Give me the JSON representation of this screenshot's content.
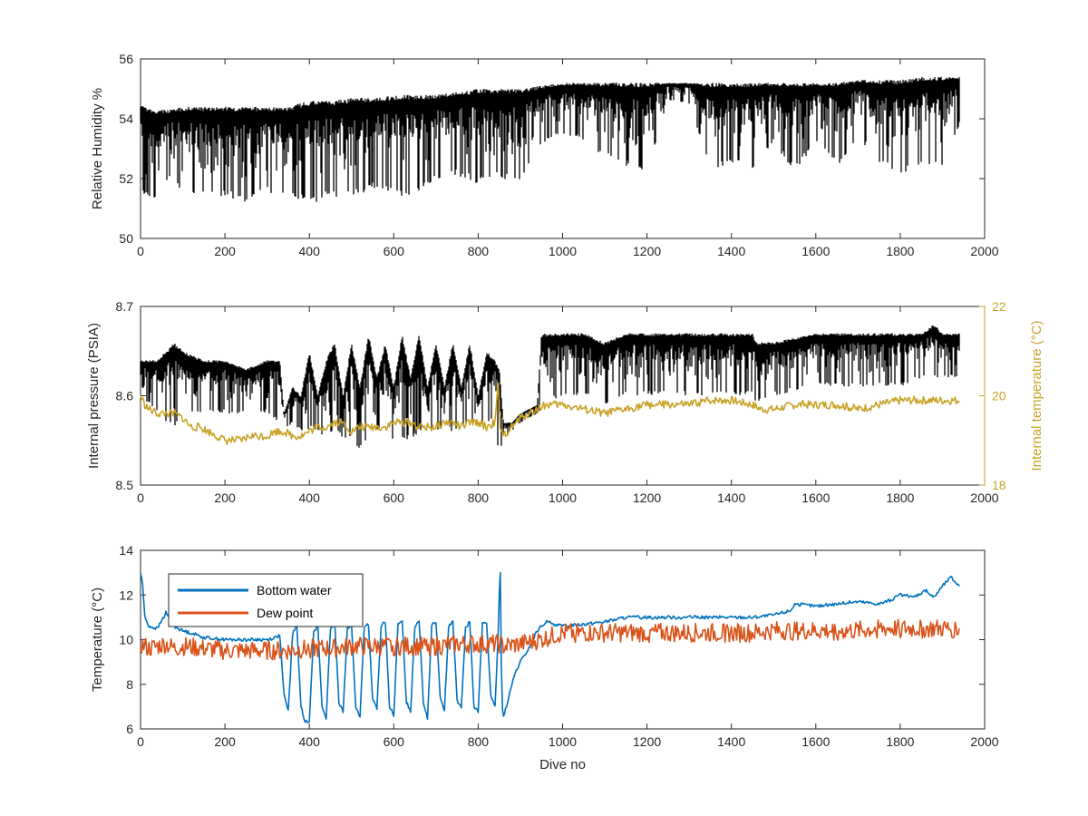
{
  "colors": {
    "rh": "#000000",
    "pressure": "#000000",
    "internal_temp": "#C9A227",
    "bottom_water": "#0072BD",
    "dew_point": "#D95319",
    "axis": "#262626"
  },
  "chart_data": [
    {
      "type": "line",
      "title": "",
      "xlabel": "",
      "ylabel": "Relative Humidity %",
      "xlim": [
        0,
        2000
      ],
      "ylim": [
        50,
        56
      ],
      "xticks": [
        "0",
        "200",
        "400",
        "600",
        "800",
        "1000",
        "1200",
        "1400",
        "1600",
        "1800",
        "2000"
      ],
      "yticks": [
        "50",
        "52",
        "54",
        "56"
      ],
      "grid": false,
      "series": [
        {
          "style": "dense envelope",
          "color": "#000000",
          "x": [
            0,
            25,
            50,
            75,
            100,
            150,
            200,
            250,
            300,
            350,
            400,
            450,
            500,
            550,
            600,
            650,
            700,
            750,
            800,
            850,
            900,
            950,
            1000,
            1050,
            1100,
            1150,
            1200,
            1250,
            1300,
            1350,
            1400,
            1450,
            1500,
            1550,
            1600,
            1650,
            1700,
            1750,
            1800,
            1850,
            1900,
            1940
          ],
          "upper": [
            54.5,
            54.3,
            54.3,
            54.3,
            54.4,
            54.4,
            54.4,
            54.4,
            54.4,
            54.4,
            54.6,
            54.6,
            54.7,
            54.7,
            54.8,
            54.8,
            54.8,
            54.9,
            55.0,
            55.0,
            55.0,
            55.1,
            55.2,
            55.2,
            55.2,
            55.2,
            55.2,
            55.2,
            55.2,
            55.2,
            55.2,
            55.2,
            55.2,
            55.2,
            55.2,
            55.2,
            55.3,
            55.3,
            55.3,
            55.4,
            55.4,
            55.4
          ],
          "lower": [
            51.4,
            51.3,
            51.4,
            52.2,
            51.4,
            51.4,
            51.4,
            51.2,
            51.5,
            51.5,
            51.1,
            51.4,
            51.3,
            51.7,
            51.4,
            51.4,
            52.0,
            52.1,
            51.8,
            52.0,
            51.9,
            53.1,
            53.5,
            53.3,
            52.7,
            52.4,
            52.2,
            54.6,
            54.5,
            52.3,
            52.5,
            52.2,
            53.2,
            52.2,
            53.2,
            52.4,
            53.4,
            52.5,
            52.1,
            52.5,
            52.4,
            53.8
          ]
        }
      ]
    },
    {
      "type": "line",
      "title": "",
      "xlabel": "",
      "ylabel": "Internal pressure (PSIA)",
      "y2label": "Internal temperature (°C)",
      "xlim": [
        0,
        2000
      ],
      "ylim": [
        8.5,
        8.7
      ],
      "y2lim": [
        18,
        22
      ],
      "xticks": [
        "0",
        "200",
        "400",
        "600",
        "800",
        "1000",
        "1200",
        "1400",
        "1600",
        "1800",
        "2000"
      ],
      "yticks": [
        "8.5",
        "8.6",
        "8.7"
      ],
      "y2ticks": [
        "18",
        "20",
        "22"
      ],
      "grid": false,
      "series": [
        {
          "style": "dense envelope",
          "color": "#000000",
          "x": [
            0,
            20,
            40,
            60,
            80,
            100,
            150,
            200,
            250,
            300,
            330,
            340,
            360,
            380,
            400,
            420,
            440,
            460,
            480,
            500,
            520,
            540,
            560,
            580,
            600,
            620,
            640,
            660,
            680,
            700,
            720,
            740,
            760,
            780,
            800,
            820,
            840,
            850,
            860,
            880,
            900,
            940,
            950,
            960,
            1000,
            1050,
            1100,
            1150,
            1200,
            1300,
            1400,
            1450,
            1460,
            1500,
            1600,
            1700,
            1800,
            1850,
            1880,
            1900,
            1940
          ],
          "upper": [
            8.64,
            8.64,
            8.64,
            8.65,
            8.66,
            8.65,
            8.64,
            8.64,
            8.63,
            8.64,
            8.64,
            8.58,
            8.61,
            8.6,
            8.65,
            8.6,
            8.64,
            8.66,
            8.6,
            8.66,
            8.61,
            8.67,
            8.62,
            8.66,
            8.61,
            8.67,
            8.62,
            8.67,
            8.61,
            8.66,
            8.61,
            8.66,
            8.61,
            8.66,
            8.6,
            8.65,
            8.64,
            8.63,
            8.57,
            8.57,
            8.58,
            8.59,
            8.67,
            8.67,
            8.67,
            8.67,
            8.66,
            8.67,
            8.67,
            8.67,
            8.67,
            8.67,
            8.66,
            8.66,
            8.67,
            8.67,
            8.67,
            8.67,
            8.68,
            8.67,
            8.67
          ],
          "lower": [
            8.6,
            8.59,
            8.58,
            8.57,
            8.56,
            8.58,
            8.58,
            8.58,
            8.58,
            8.58,
            8.57,
            8.56,
            8.57,
            8.56,
            8.56,
            8.56,
            8.55,
            8.56,
            8.55,
            8.55,
            8.54,
            8.55,
            8.56,
            8.56,
            8.55,
            8.55,
            8.55,
            8.56,
            8.56,
            8.56,
            8.56,
            8.56,
            8.56,
            8.57,
            8.56,
            8.57,
            8.57,
            8.53,
            8.55,
            8.56,
            8.57,
            8.58,
            8.58,
            8.59,
            8.6,
            8.6,
            8.59,
            8.6,
            8.6,
            8.6,
            8.6,
            8.6,
            8.59,
            8.6,
            8.61,
            8.61,
            8.61,
            8.62,
            8.62,
            8.62,
            8.62
          ]
        },
        {
          "name": "",
          "axis": "right",
          "color": "#C9A227",
          "x": [
            0,
            10,
            20,
            40,
            60,
            80,
            100,
            120,
            140,
            160,
            180,
            200,
            220,
            240,
            260,
            280,
            300,
            320,
            340,
            360,
            380,
            400,
            420,
            440,
            460,
            480,
            500,
            520,
            540,
            560,
            580,
            600,
            620,
            640,
            660,
            680,
            700,
            720,
            740,
            760,
            780,
            800,
            820,
            840,
            848,
            852,
            858,
            870,
            880,
            900,
            920,
            940,
            960,
            980,
            1000,
            1050,
            1100,
            1150,
            1200,
            1250,
            1300,
            1350,
            1400,
            1450,
            1470,
            1500,
            1550,
            1600,
            1650,
            1700,
            1750,
            1800,
            1850,
            1900,
            1940
          ],
          "y": [
            20.0,
            19.8,
            19.7,
            19.6,
            19.6,
            19.6,
            19.5,
            19.3,
            19.3,
            19.2,
            19.1,
            19.0,
            19.0,
            19.0,
            19.1,
            19.1,
            19.1,
            19.2,
            19.2,
            19.1,
            19.1,
            19.2,
            19.3,
            19.3,
            19.4,
            19.4,
            19.2,
            19.3,
            19.3,
            19.3,
            19.3,
            19.4,
            19.4,
            19.4,
            19.3,
            19.3,
            19.3,
            19.4,
            19.4,
            19.3,
            19.4,
            19.4,
            19.3,
            19.4,
            20.3,
            19.2,
            19.1,
            19.2,
            19.3,
            19.5,
            19.6,
            19.7,
            19.8,
            19.8,
            19.8,
            19.7,
            19.6,
            19.7,
            19.8,
            19.8,
            19.8,
            19.9,
            19.9,
            19.8,
            19.7,
            19.7,
            19.8,
            19.8,
            19.8,
            19.7,
            19.8,
            19.9,
            19.9,
            19.9,
            19.9
          ]
        }
      ]
    },
    {
      "type": "line",
      "title": "",
      "xlabel": "Dive no",
      "ylabel": "Temperature (°C)",
      "xlim": [
        0,
        2000
      ],
      "ylim": [
        6,
        14
      ],
      "xticks": [
        "0",
        "200",
        "400",
        "600",
        "800",
        "1000",
        "1200",
        "1400",
        "1600",
        "1800",
        "2000"
      ],
      "yticks": [
        "6",
        "8",
        "10",
        "12",
        "14"
      ],
      "grid": false,
      "legend": {
        "placement": "top-left",
        "entries": [
          "Bottom water",
          "Dew point"
        ]
      },
      "series": [
        {
          "name": "Bottom water",
          "color": "#0072BD",
          "x": [
            0,
            5,
            10,
            20,
            40,
            60,
            80,
            100,
            120,
            150,
            200,
            250,
            300,
            320,
            330,
            340,
            350,
            360,
            370,
            380,
            390,
            400,
            410,
            420,
            430,
            440,
            450,
            460,
            470,
            480,
            490,
            500,
            510,
            520,
            530,
            540,
            550,
            560,
            570,
            580,
            590,
            600,
            610,
            620,
            630,
            640,
            650,
            660,
            670,
            680,
            690,
            700,
            710,
            720,
            730,
            740,
            750,
            760,
            770,
            780,
            790,
            800,
            810,
            820,
            830,
            840,
            848,
            852,
            856,
            860,
            870,
            880,
            890,
            900,
            920,
            940,
            960,
            980,
            1000,
            1050,
            1100,
            1150,
            1200,
            1250,
            1300,
            1350,
            1400,
            1450,
            1500,
            1520,
            1540,
            1550,
            1600,
            1650,
            1700,
            1750,
            1780,
            1800,
            1830,
            1860,
            1880,
            1900,
            1920,
            1930,
            1940
          ],
          "y": [
            13.0,
            12.5,
            11.0,
            10.6,
            10.5,
            11.2,
            10.6,
            10.4,
            10.3,
            10.1,
            10.0,
            10.0,
            10.0,
            10.1,
            10.2,
            7.5,
            6.8,
            10.2,
            10.7,
            7.0,
            6.3,
            6.4,
            10.3,
            10.6,
            7.0,
            6.5,
            10.4,
            10.8,
            7.2,
            6.8,
            10.5,
            10.6,
            7.0,
            6.5,
            10.6,
            10.7,
            7.3,
            6.9,
            10.6,
            10.8,
            7.0,
            6.6,
            10.7,
            10.8,
            7.2,
            6.8,
            10.6,
            10.9,
            7.2,
            6.5,
            10.7,
            10.8,
            7.5,
            6.8,
            10.6,
            10.8,
            7.3,
            6.9,
            10.5,
            10.8,
            7.0,
            6.8,
            10.7,
            10.8,
            7.4,
            7.0,
            10.5,
            13.8,
            7.0,
            6.6,
            7.2,
            8.0,
            8.6,
            9.0,
            9.6,
            10.4,
            10.8,
            10.7,
            10.6,
            10.7,
            10.8,
            11.0,
            11.0,
            11.0,
            11.0,
            11.0,
            11.0,
            11.0,
            11.1,
            11.2,
            11.3,
            11.6,
            11.5,
            11.6,
            11.7,
            11.6,
            11.8,
            12.0,
            11.9,
            12.2,
            11.9,
            12.4,
            12.8,
            12.6,
            12.4
          ]
        },
        {
          "name": "Dew point",
          "color": "#D95319",
          "x": [
            0,
            20,
            40,
            60,
            80,
            100,
            150,
            200,
            250,
            300,
            350,
            400,
            450,
            500,
            550,
            600,
            650,
            700,
            750,
            800,
            840,
            850,
            860,
            900,
            950,
            1000,
            1050,
            1100,
            1150,
            1200,
            1250,
            1300,
            1350,
            1400,
            1450,
            1500,
            1550,
            1600,
            1650,
            1700,
            1750,
            1800,
            1850,
            1900,
            1940
          ],
          "y": [
            9.8,
            9.6,
            9.7,
            9.8,
            9.6,
            9.7,
            9.6,
            9.5,
            9.5,
            9.5,
            9.5,
            9.6,
            9.6,
            9.7,
            9.7,
            9.7,
            9.7,
            9.7,
            9.8,
            9.8,
            9.8,
            9.8,
            9.7,
            9.8,
            10.0,
            10.3,
            10.3,
            10.3,
            10.3,
            10.3,
            10.3,
            10.3,
            10.3,
            10.3,
            10.3,
            10.4,
            10.4,
            10.4,
            10.4,
            10.4,
            10.5,
            10.5,
            10.5,
            10.5,
            10.5
          ]
        }
      ]
    }
  ]
}
